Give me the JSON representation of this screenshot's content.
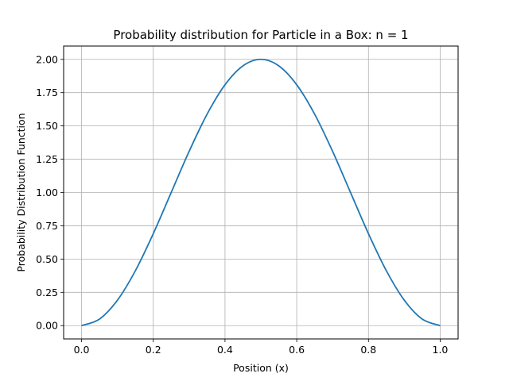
{
  "chart_data": {
    "type": "line",
    "title": "Probability distribution for Particle in a Box: n = 1",
    "xlabel": "Position (x)",
    "ylabel": "Probability Distribution Function",
    "xlim": [
      -0.05,
      1.05
    ],
    "ylim": [
      -0.1,
      2.1
    ],
    "grid": true,
    "x_ticks": [
      "0.0",
      "0.2",
      "0.4",
      "0.6",
      "0.8",
      "1.0"
    ],
    "y_ticks": [
      "0.00",
      "0.25",
      "0.50",
      "0.75",
      "1.00",
      "1.25",
      "1.50",
      "1.75",
      "2.00"
    ],
    "series": [
      {
        "color": "#1f77b4",
        "x": [
          0.0,
          0.05,
          0.1,
          0.15,
          0.2,
          0.25,
          0.3,
          0.35,
          0.4,
          0.45,
          0.5,
          0.55,
          0.6,
          0.65,
          0.7,
          0.75,
          0.8,
          0.85,
          0.9,
          0.95,
          1.0
        ],
        "y": [
          0.0,
          0.049,
          0.191,
          0.412,
          0.691,
          1.0,
          1.309,
          1.588,
          1.809,
          1.951,
          2.0,
          1.951,
          1.809,
          1.588,
          1.309,
          1.0,
          0.691,
          0.412,
          0.191,
          0.049,
          0.0
        ]
      }
    ]
  }
}
